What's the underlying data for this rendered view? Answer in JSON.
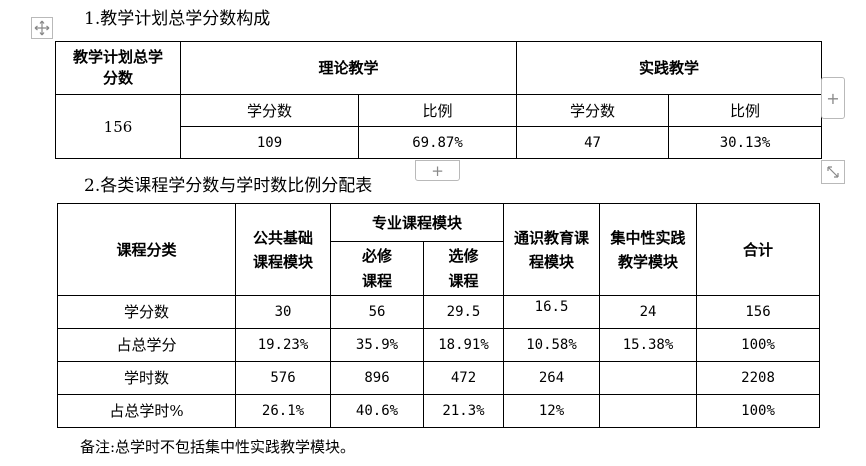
{
  "heading1": "1.教学计划总学分数构成",
  "heading2": "2.各类课程学分数与学时数比例分配表",
  "table1": {
    "col_total": "教学计划总学分数",
    "col_theory": "理论教学",
    "col_practice": "实践教学",
    "sub_credits": "学分数",
    "sub_ratio": "比例",
    "total_credits": "156",
    "theory_credits": "109",
    "theory_ratio": "69.87%",
    "practice_credits": "47",
    "practice_ratio": "30.13%"
  },
  "table2": {
    "headers": {
      "category": "课程分类",
      "public": "公共基础课程模块",
      "major": "专业课程模块",
      "required": "必修课程",
      "elective": "选修课程",
      "general": "通识教育课程模块",
      "practice": "集中性实践教学模块",
      "total": "合计"
    },
    "rows": [
      {
        "label": "学分数",
        "cells": [
          "30",
          "56",
          "29.5",
          "16.5",
          "24",
          "156"
        ]
      },
      {
        "label": "占总学分",
        "cells": [
          "19.23%",
          "35.9%",
          "18.91%",
          "10.58%",
          "15.38%",
          "100%"
        ]
      },
      {
        "label": "学时数",
        "cells": [
          "576",
          "896",
          "472",
          "264",
          "",
          "2208"
        ]
      },
      {
        "label": "占总学时%",
        "cells": [
          "26.1%",
          "40.6%",
          "21.3%",
          "12%",
          "",
          "100%"
        ]
      }
    ]
  },
  "note": "备注:总学时不包括集中性实践教学模块。",
  "icons": {
    "move": "move-handle-icon",
    "add_column": "plus-icon",
    "add_row": "plus-icon",
    "resize": "resize-diagonal-icon"
  }
}
